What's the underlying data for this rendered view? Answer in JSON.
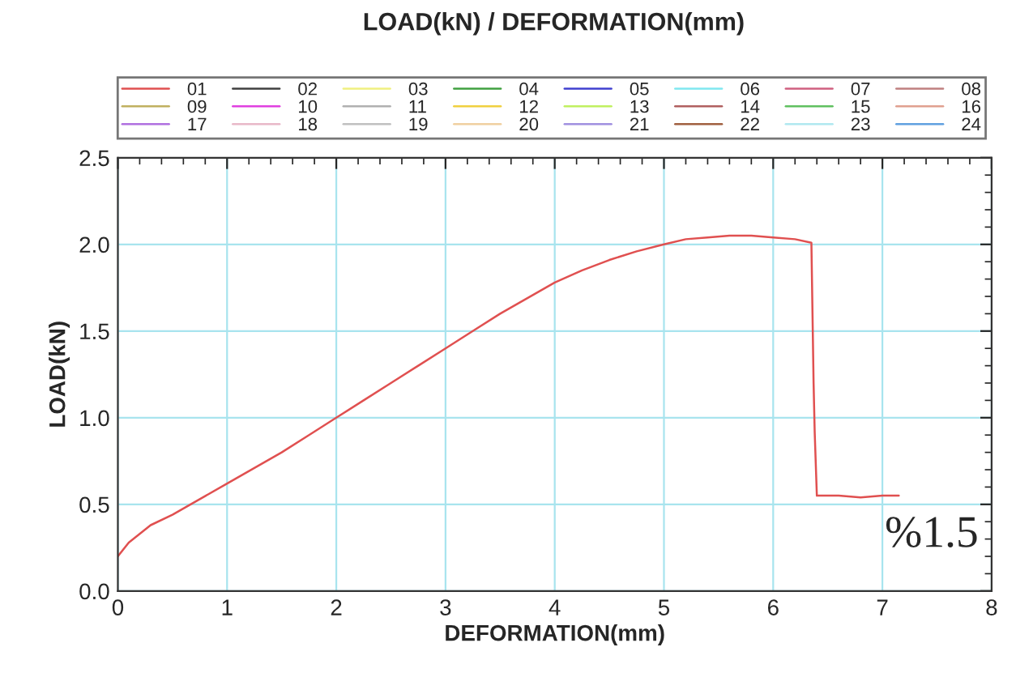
{
  "chart_data": {
    "type": "line",
    "title": "LOAD(kN) / DEFORMATION(mm)",
    "xlabel": "DEFORMATION(mm)",
    "ylabel": "LOAD(kN)",
    "xlim": [
      0,
      8
    ],
    "xticks": [
      0,
      1,
      2,
      3,
      4,
      5,
      6,
      7,
      8
    ],
    "ylim": [
      0,
      2.5
    ],
    "yticks": [
      {
        "value": 0,
        "label": "0.0"
      },
      0.5,
      {
        "value": 1,
        "label": "1.0"
      },
      1.5,
      {
        "value": 2,
        "label": "2.0"
      },
      2.5
    ],
    "grid": true,
    "legend": "top",
    "marker": "none",
    "line_style": "solid",
    "annotations": [
      "%1.5"
    ],
    "series": [
      {
        "name": "01",
        "color": "#e05050",
        "x": [
          0,
          0.1,
          0.3,
          0.5,
          0.75,
          1,
          1.25,
          1.5,
          1.75,
          2,
          2.25,
          2.5,
          2.75,
          3,
          3.25,
          3.5,
          3.75,
          4,
          4.25,
          4.5,
          4.75,
          5,
          5.2,
          5.4,
          5.6,
          5.8,
          6.0,
          6.2,
          6.35,
          6.37,
          6.38,
          6.4,
          6.6,
          6.8,
          7.0,
          7.15
        ],
        "values": [
          0.2,
          0.28,
          0.38,
          0.44,
          0.53,
          0.62,
          0.71,
          0.8,
          0.9,
          1.0,
          1.1,
          1.2,
          1.3,
          1.4,
          1.5,
          1.6,
          1.69,
          1.78,
          1.85,
          1.91,
          1.96,
          2.0,
          2.03,
          2.04,
          2.05,
          2.05,
          2.04,
          2.03,
          2.01,
          1.2,
          0.92,
          0.55,
          0.55,
          0.54,
          0.55,
          0.55
        ]
      },
      {
        "name": "02",
        "color": "#404040"
      },
      {
        "name": "03",
        "color": "#f0f080"
      },
      {
        "name": "04",
        "color": "#40a040"
      },
      {
        "name": "05",
        "color": "#4040d0"
      },
      {
        "name": "06",
        "color": "#80e8f0"
      },
      {
        "name": "07",
        "color": "#d06080"
      },
      {
        "name": "08",
        "color": "#c08080"
      },
      {
        "name": "09",
        "color": "#c0b060"
      },
      {
        "name": "10",
        "color": "#e040e0"
      },
      {
        "name": "11",
        "color": "#b0b0b0"
      },
      {
        "name": "12",
        "color": "#f0d040"
      },
      {
        "name": "13",
        "color": "#c0f060"
      },
      {
        "name": "14",
        "color": "#b06060"
      },
      {
        "name": "15",
        "color": "#60c060"
      },
      {
        "name": "16",
        "color": "#e0a090"
      },
      {
        "name": "17",
        "color": "#b070e0"
      },
      {
        "name": "18",
        "color": "#e8b8c8"
      },
      {
        "name": "19",
        "color": "#c0c0c0"
      },
      {
        "name": "20",
        "color": "#f0d0a0"
      },
      {
        "name": "21",
        "color": "#a090e0"
      },
      {
        "name": "22",
        "color": "#a06040"
      },
      {
        "name": "23",
        "color": "#b0e8f0"
      },
      {
        "name": "24",
        "color": "#60a0e0"
      }
    ]
  }
}
